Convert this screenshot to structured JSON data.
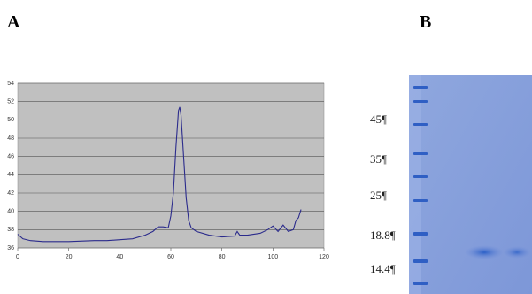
{
  "panels": [
    "A",
    "B"
  ],
  "chart_data": {
    "type": "line",
    "x": [
      0,
      2,
      5,
      10,
      20,
      30,
      35,
      40,
      45,
      50,
      53,
      55,
      57,
      59,
      60,
      61,
      62,
      63,
      63.5,
      64,
      65,
      66,
      67,
      68,
      70,
      75,
      80,
      85,
      86,
      87,
      90,
      95,
      98,
      100,
      102,
      104,
      106,
      108,
      109,
      110,
      111
    ],
    "series": [
      {
        "color": "#2b2b8c",
        "values": [
          37.5,
          37.0,
          36.8,
          36.7,
          36.7,
          36.8,
          36.8,
          36.9,
          37.0,
          37.4,
          37.8,
          38.3,
          38.3,
          38.2,
          39.5,
          42,
          47,
          51.0,
          51.4,
          50.5,
          46,
          41.5,
          39,
          38.2,
          37.8,
          37.4,
          37.2,
          37.3,
          37.8,
          37.4,
          37.4,
          37.6,
          38.0,
          38.4,
          37.8,
          38.5,
          37.8,
          38.0,
          39.0,
          39.3,
          40.2
        ]
      }
    ],
    "xlim": [
      0,
      120
    ],
    "xticks": [
      0,
      20,
      40,
      60,
      80,
      100,
      120
    ],
    "ylim": [
      36,
      54
    ],
    "yticks": [
      36,
      38,
      40,
      42,
      44,
      46,
      48,
      50,
      52,
      54
    ],
    "grid": true
  },
  "gel": {
    "markers": [
      "45¶",
      "35¶",
      "25¶",
      "18.8¶",
      "14.4¶"
    ]
  }
}
